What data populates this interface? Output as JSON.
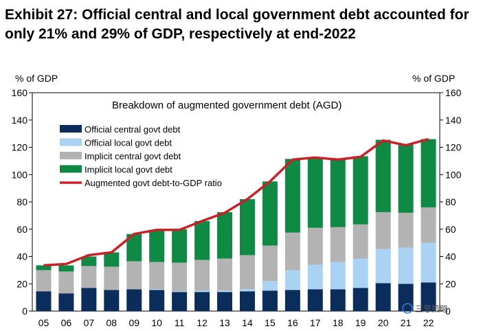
{
  "title": "Exhibit 27: Official central and local government debt accounted for only 21% and 29% of GDP, respectively at end-2022",
  "colors": {
    "official_central": "#0b2d5c",
    "official_local": "#a9d2f3",
    "implicit_central": "#b3b3b3",
    "implicit_local": "#0f8a45",
    "ratio_line": "#c82127",
    "axis": "#000000"
  },
  "watermark": "三思策略",
  "chart_data": {
    "type": "bar",
    "stacked": true,
    "subtitle": "Breakdown of augmented government debt (AGD)",
    "y_left_label": "% of GDP",
    "y_right_label": "% of GDP",
    "ylim": [
      0,
      160
    ],
    "yticks": [
      0,
      20,
      40,
      60,
      80,
      100,
      120,
      140,
      160
    ],
    "categories": [
      "05",
      "06",
      "07",
      "08",
      "09",
      "10",
      "11",
      "12",
      "13",
      "14",
      "15",
      "16",
      "17",
      "18",
      "19",
      "20",
      "21",
      "22"
    ],
    "series": [
      {
        "name": "Official central govt debt",
        "color_key": "official_central",
        "values": [
          14.5,
          13,
          17,
          15.5,
          16,
          15.5,
          14,
          14,
          14,
          14.5,
          15,
          15.5,
          16,
          16,
          17,
          20.5,
          20,
          21
        ]
      },
      {
        "name": "Official local govt debt",
        "color_key": "official_local",
        "values": [
          0,
          0,
          0,
          0,
          0,
          0.5,
          0.5,
          1,
          1,
          1.5,
          7,
          14.5,
          18,
          20,
          21.5,
          25,
          26.5,
          29
        ]
      },
      {
        "name": "Implicit central govt debt",
        "color_key": "implicit_central",
        "values": [
          15.5,
          16,
          16,
          17,
          20.5,
          20,
          21,
          22.5,
          23.5,
          25,
          26,
          27.5,
          27,
          25.5,
          25,
          27,
          25.5,
          26
        ]
      },
      {
        "name": "Implicit local govt debt",
        "color_key": "implicit_local",
        "values": [
          3.5,
          4.5,
          7,
          10.5,
          20,
          23.5,
          24.5,
          28.5,
          34,
          41,
          47,
          54,
          51,
          50,
          50,
          53,
          50,
          50
        ]
      }
    ],
    "line": {
      "name": "Augmented govt debt-to-GDP ratio",
      "color_key": "ratio_line",
      "values": [
        33.5,
        34.5,
        41,
        43,
        56.5,
        59.5,
        59.5,
        66,
        72,
        82,
        95,
        111,
        112.5,
        111,
        113,
        125,
        121.5,
        126
      ]
    },
    "legend_position": "top-left"
  }
}
